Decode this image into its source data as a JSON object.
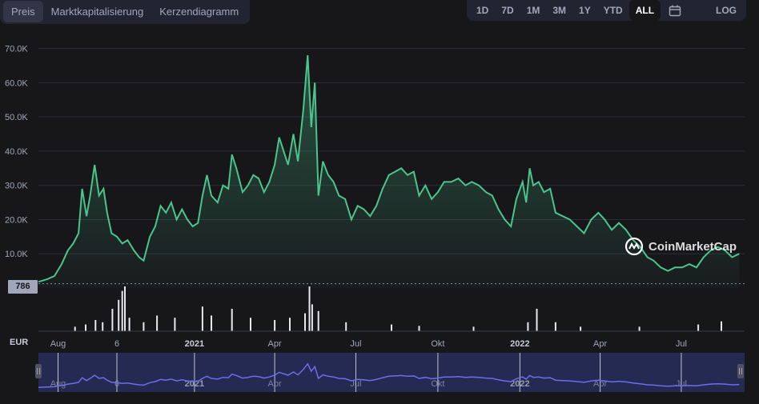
{
  "tabs": [
    "Preis",
    "Marktkapitalisierung",
    "Kerzendiagramm"
  ],
  "active_tab": 0,
  "ranges": [
    "1D",
    "7D",
    "1M",
    "3M",
    "1Y",
    "YTD",
    "ALL"
  ],
  "active_range": "ALL",
  "log_label": "LOG",
  "calendar_icon": "calendar-icon",
  "currency_label": "EUR",
  "current_price_badge": "786",
  "watermark": "CoinMarketCap",
  "colors": {
    "line": "#4bc48d",
    "volume": "#e8e8ef",
    "navigator": "#6b6ee8",
    "background": "#17171a"
  },
  "chart_data": {
    "type": "area",
    "title": "",
    "xlabel": "",
    "ylabel": "",
    "ylim": [
      0,
      72000
    ],
    "yticks": [
      {
        "value": 10000,
        "label": "10.0K"
      },
      {
        "value": 20000,
        "label": "20.0K"
      },
      {
        "value": 30000,
        "label": "30.0K"
      },
      {
        "value": 40000,
        "label": "40.0K"
      },
      {
        "value": 50000,
        "label": "50.0K"
      },
      {
        "value": 60000,
        "label": "60.0K"
      },
      {
        "value": 70000,
        "label": "70.0K"
      }
    ],
    "xticks": [
      {
        "label": "Aug",
        "date": "2020-08-01",
        "bold": false
      },
      {
        "label": "6",
        "date": "2020-10-06",
        "bold": false
      },
      {
        "label": "2021",
        "date": "2021-01-01",
        "bold": true
      },
      {
        "label": "Apr",
        "date": "2021-04-01",
        "bold": false
      },
      {
        "label": "Jul",
        "date": "2021-07-01",
        "bold": false
      },
      {
        "label": "Okt",
        "date": "2021-10-01",
        "bold": false
      },
      {
        "label": "2022",
        "date": "2022-01-01",
        "bold": true
      },
      {
        "label": "Apr",
        "date": "2022-04-01",
        "bold": false
      },
      {
        "label": "Jul",
        "date": "2022-07-01",
        "bold": false
      }
    ],
    "xlim": [
      "2020-07-10",
      "2022-09-10"
    ],
    "baseline_value": 786,
    "series": [
      {
        "points": [
          [
            "2020-07-10",
            1800
          ],
          [
            "2020-07-20",
            2600
          ],
          [
            "2020-07-28",
            3500
          ],
          [
            "2020-08-05",
            7000
          ],
          [
            "2020-08-12",
            11000
          ],
          [
            "2020-08-18",
            13000
          ],
          [
            "2020-08-24",
            16000
          ],
          [
            "2020-08-28",
            29000
          ],
          [
            "2020-09-02",
            21000
          ],
          [
            "2020-09-06",
            27000
          ],
          [
            "2020-09-11",
            36000
          ],
          [
            "2020-09-16",
            27000
          ],
          [
            "2020-09-21",
            29000
          ],
          [
            "2020-09-25",
            22000
          ],
          [
            "2020-09-30",
            16000
          ],
          [
            "2020-10-06",
            15000
          ],
          [
            "2020-10-12",
            13000
          ],
          [
            "2020-10-18",
            14000
          ],
          [
            "2020-10-25",
            11000
          ],
          [
            "2020-10-31",
            9000
          ],
          [
            "2020-11-05",
            8000
          ],
          [
            "2020-11-12",
            15000
          ],
          [
            "2020-11-18",
            18000
          ],
          [
            "2020-11-24",
            24000
          ],
          [
            "2020-11-30",
            22000
          ],
          [
            "2020-12-06",
            25000
          ],
          [
            "2020-12-12",
            20000
          ],
          [
            "2020-12-18",
            23000
          ],
          [
            "2020-12-24",
            20000
          ],
          [
            "2020-12-30",
            18000
          ],
          [
            "2021-01-05",
            19000
          ],
          [
            "2021-01-10",
            27000
          ],
          [
            "2021-01-15",
            33000
          ],
          [
            "2021-01-20",
            27000
          ],
          [
            "2021-01-27",
            25000
          ],
          [
            "2021-02-02",
            30000
          ],
          [
            "2021-02-08",
            29000
          ],
          [
            "2021-02-12",
            39000
          ],
          [
            "2021-02-17",
            35000
          ],
          [
            "2021-02-24",
            28000
          ],
          [
            "2021-03-02",
            30000
          ],
          [
            "2021-03-08",
            33000
          ],
          [
            "2021-03-14",
            32000
          ],
          [
            "2021-03-20",
            28000
          ],
          [
            "2021-03-26",
            31000
          ],
          [
            "2021-04-01",
            36000
          ],
          [
            "2021-04-06",
            44000
          ],
          [
            "2021-04-11",
            40000
          ],
          [
            "2021-04-16",
            36000
          ],
          [
            "2021-04-22",
            45000
          ],
          [
            "2021-04-27",
            37000
          ],
          [
            "2021-05-03",
            52000
          ],
          [
            "2021-05-08",
            68000
          ],
          [
            "2021-05-12",
            47000
          ],
          [
            "2021-05-16",
            60000
          ],
          [
            "2021-05-20",
            27000
          ],
          [
            "2021-05-25",
            37000
          ],
          [
            "2021-05-31",
            33000
          ],
          [
            "2021-06-06",
            31000
          ],
          [
            "2021-06-12",
            27000
          ],
          [
            "2021-06-19",
            26000
          ],
          [
            "2021-06-26",
            20000
          ],
          [
            "2021-07-03",
            24000
          ],
          [
            "2021-07-10",
            23000
          ],
          [
            "2021-07-17",
            21000
          ],
          [
            "2021-07-24",
            24000
          ],
          [
            "2021-07-31",
            29000
          ],
          [
            "2021-08-07",
            33000
          ],
          [
            "2021-08-14",
            34000
          ],
          [
            "2021-08-21",
            35000
          ],
          [
            "2021-08-28",
            33000
          ],
          [
            "2021-09-04",
            34000
          ],
          [
            "2021-09-10",
            27000
          ],
          [
            "2021-09-17",
            30000
          ],
          [
            "2021-09-24",
            26000
          ],
          [
            "2021-10-01",
            28000
          ],
          [
            "2021-10-08",
            31000
          ],
          [
            "2021-10-16",
            31000
          ],
          [
            "2021-10-24",
            32000
          ],
          [
            "2021-11-01",
            30000
          ],
          [
            "2021-11-08",
            31000
          ],
          [
            "2021-11-16",
            30000
          ],
          [
            "2021-11-24",
            28000
          ],
          [
            "2021-12-01",
            27000
          ],
          [
            "2021-12-08",
            23000
          ],
          [
            "2021-12-15",
            20000
          ],
          [
            "2021-12-22",
            18000
          ],
          [
            "2021-12-28",
            26000
          ],
          [
            "2022-01-04",
            31000
          ],
          [
            "2022-01-08",
            25000
          ],
          [
            "2022-01-12",
            35000
          ],
          [
            "2022-01-16",
            30000
          ],
          [
            "2022-01-22",
            31000
          ],
          [
            "2022-01-28",
            28000
          ],
          [
            "2022-02-04",
            29000
          ],
          [
            "2022-02-10",
            22000
          ],
          [
            "2022-02-18",
            21000
          ],
          [
            "2022-02-26",
            20000
          ],
          [
            "2022-03-06",
            18000
          ],
          [
            "2022-03-14",
            16000
          ],
          [
            "2022-03-22",
            20000
          ],
          [
            "2022-03-30",
            22000
          ],
          [
            "2022-04-06",
            20000
          ],
          [
            "2022-04-14",
            17000
          ],
          [
            "2022-04-22",
            19000
          ],
          [
            "2022-04-30",
            17000
          ],
          [
            "2022-05-08",
            14000
          ],
          [
            "2022-05-16",
            12000
          ],
          [
            "2022-05-24",
            9000
          ],
          [
            "2022-05-31",
            8000
          ],
          [
            "2022-06-08",
            6000
          ],
          [
            "2022-06-16",
            5000
          ],
          [
            "2022-06-24",
            6000
          ],
          [
            "2022-07-02",
            6000
          ],
          [
            "2022-07-10",
            7000
          ],
          [
            "2022-07-18",
            6000
          ],
          [
            "2022-07-26",
            9000
          ],
          [
            "2022-08-03",
            11000
          ],
          [
            "2022-08-11",
            12000
          ],
          [
            "2022-08-19",
            11000
          ],
          [
            "2022-08-27",
            9000
          ],
          [
            "2022-09-04",
            10000
          ]
        ]
      }
    ],
    "volume": {
      "ylim": [
        0,
        1
      ],
      "points": [
        [
          "2020-08-20",
          0.1
        ],
        [
          "2020-09-01",
          0.15
        ],
        [
          "2020-09-12",
          0.25
        ],
        [
          "2020-09-20",
          0.2
        ],
        [
          "2020-10-01",
          0.5
        ],
        [
          "2020-10-08",
          0.7
        ],
        [
          "2020-10-12",
          0.9
        ],
        [
          "2020-10-15",
          1.0
        ],
        [
          "2020-10-20",
          0.3
        ],
        [
          "2020-11-05",
          0.2
        ],
        [
          "2020-11-20",
          0.35
        ],
        [
          "2020-12-10",
          0.3
        ],
        [
          "2021-01-10",
          0.55
        ],
        [
          "2021-01-20",
          0.35
        ],
        [
          "2021-02-12",
          0.5
        ],
        [
          "2021-03-05",
          0.3
        ],
        [
          "2021-04-01",
          0.25
        ],
        [
          "2021-04-18",
          0.3
        ],
        [
          "2021-05-05",
          0.4
        ],
        [
          "2021-05-10",
          1.0
        ],
        [
          "2021-05-13",
          0.6
        ],
        [
          "2021-05-20",
          0.45
        ],
        [
          "2021-06-20",
          0.2
        ],
        [
          "2021-08-10",
          0.15
        ],
        [
          "2021-09-10",
          0.12
        ],
        [
          "2021-11-10",
          0.1
        ],
        [
          "2022-01-10",
          0.2
        ],
        [
          "2022-01-20",
          0.5
        ],
        [
          "2022-02-10",
          0.2
        ],
        [
          "2022-03-10",
          0.1
        ],
        [
          "2022-05-15",
          0.1
        ],
        [
          "2022-07-20",
          0.15
        ],
        [
          "2022-08-15",
          0.22
        ]
      ]
    }
  }
}
